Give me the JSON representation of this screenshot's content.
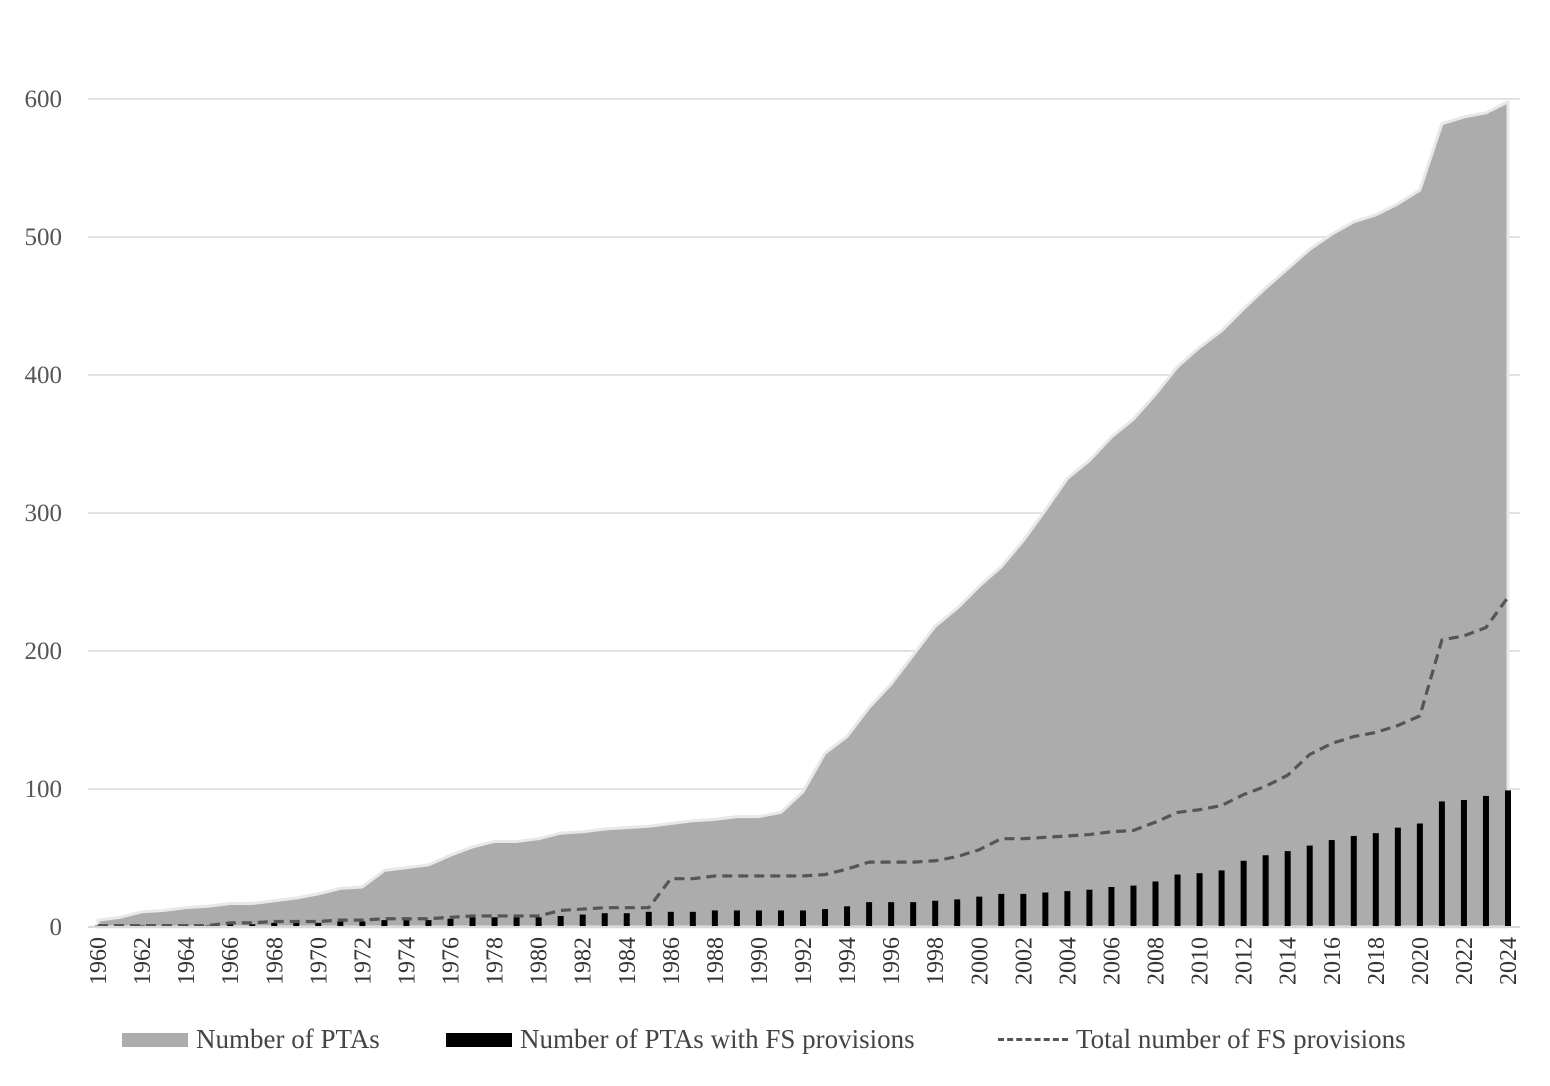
{
  "chart_data": {
    "type": "area",
    "title": "",
    "xlabel": "",
    "ylabel": "",
    "ylim": [
      0,
      600
    ],
    "yticks": [
      "0",
      "100",
      "200",
      "300",
      "400",
      "500",
      "600"
    ],
    "years": [
      1960,
      1961,
      1962,
      1963,
      1964,
      1965,
      1966,
      1967,
      1968,
      1969,
      1970,
      1971,
      1972,
      1973,
      1974,
      1975,
      1976,
      1977,
      1978,
      1979,
      1980,
      1981,
      1982,
      1983,
      1984,
      1985,
      1986,
      1987,
      1988,
      1989,
      1990,
      1991,
      1992,
      1993,
      1994,
      1995,
      1996,
      1997,
      1998,
      1999,
      2000,
      2001,
      2002,
      2003,
      2004,
      2005,
      2006,
      2007,
      2008,
      2009,
      2010,
      2011,
      2012,
      2013,
      2014,
      2015,
      2016,
      2017,
      2018,
      2019,
      2020,
      2021,
      2022,
      2023,
      2024
    ],
    "xtick_labels": [
      "1960",
      "1962",
      "1964",
      "1966",
      "1968",
      "1970",
      "1972",
      "1974",
      "1976",
      "1978",
      "1980",
      "1982",
      "1984",
      "1986",
      "1988",
      "1990",
      "1992",
      "1994",
      "1996",
      "1998",
      "2000",
      "2002",
      "2004",
      "2006",
      "2008",
      "2010",
      "2012",
      "2014",
      "2016",
      "2018",
      "2020",
      "2022",
      "2024"
    ],
    "grid": true,
    "legend_position": "bottom",
    "series": [
      {
        "name": "Number of PTAs",
        "kind": "area",
        "color": "#acacac",
        "values": [
          5,
          7,
          11,
          12,
          14,
          15,
          17,
          17,
          19,
          21,
          24,
          28,
          29,
          41,
          43,
          45,
          52,
          58,
          62,
          62,
          64,
          68,
          69,
          71,
          72,
          73,
          75,
          77,
          78,
          80,
          80,
          83,
          98,
          126,
          138,
          159,
          176,
          197,
          218,
          231,
          247,
          261,
          280,
          302,
          325,
          338,
          355,
          368,
          386,
          406,
          420,
          432,
          448,
          463,
          477,
          491,
          502,
          511,
          516,
          524,
          534,
          582,
          587,
          590,
          598
        ]
      },
      {
        "name": "Number of PTAs with FS provisions",
        "kind": "bar",
        "color": "#000000",
        "values": [
          1,
          1,
          1,
          1,
          1,
          1,
          2,
          2,
          3,
          3,
          3,
          4,
          4,
          5,
          5,
          5,
          6,
          7,
          7,
          7,
          7,
          8,
          9,
          10,
          10,
          11,
          11,
          11,
          12,
          12,
          12,
          12,
          12,
          13,
          15,
          18,
          18,
          18,
          19,
          20,
          22,
          24,
          24,
          25,
          26,
          27,
          29,
          30,
          33,
          38,
          39,
          41,
          48,
          52,
          55,
          59,
          63,
          66,
          68,
          72,
          75,
          91,
          92,
          95,
          99
        ]
      },
      {
        "name": "Total number of FS provisions",
        "kind": "line",
        "color": "#555555",
        "values": [
          1,
          1,
          1,
          1,
          1,
          1,
          3,
          3,
          4,
          4,
          4,
          5,
          5,
          6,
          6,
          6,
          7,
          8,
          8,
          8,
          8,
          12,
          13,
          14,
          14,
          14,
          35,
          35,
          37,
          37,
          37,
          37,
          37,
          38,
          42,
          47,
          47,
          47,
          48,
          51,
          56,
          64,
          64,
          65,
          66,
          67,
          69,
          70,
          76,
          83,
          85,
          88,
          96,
          102,
          110,
          125,
          133,
          138,
          141,
          146,
          153,
          208,
          211,
          217,
          239
        ]
      }
    ]
  }
}
